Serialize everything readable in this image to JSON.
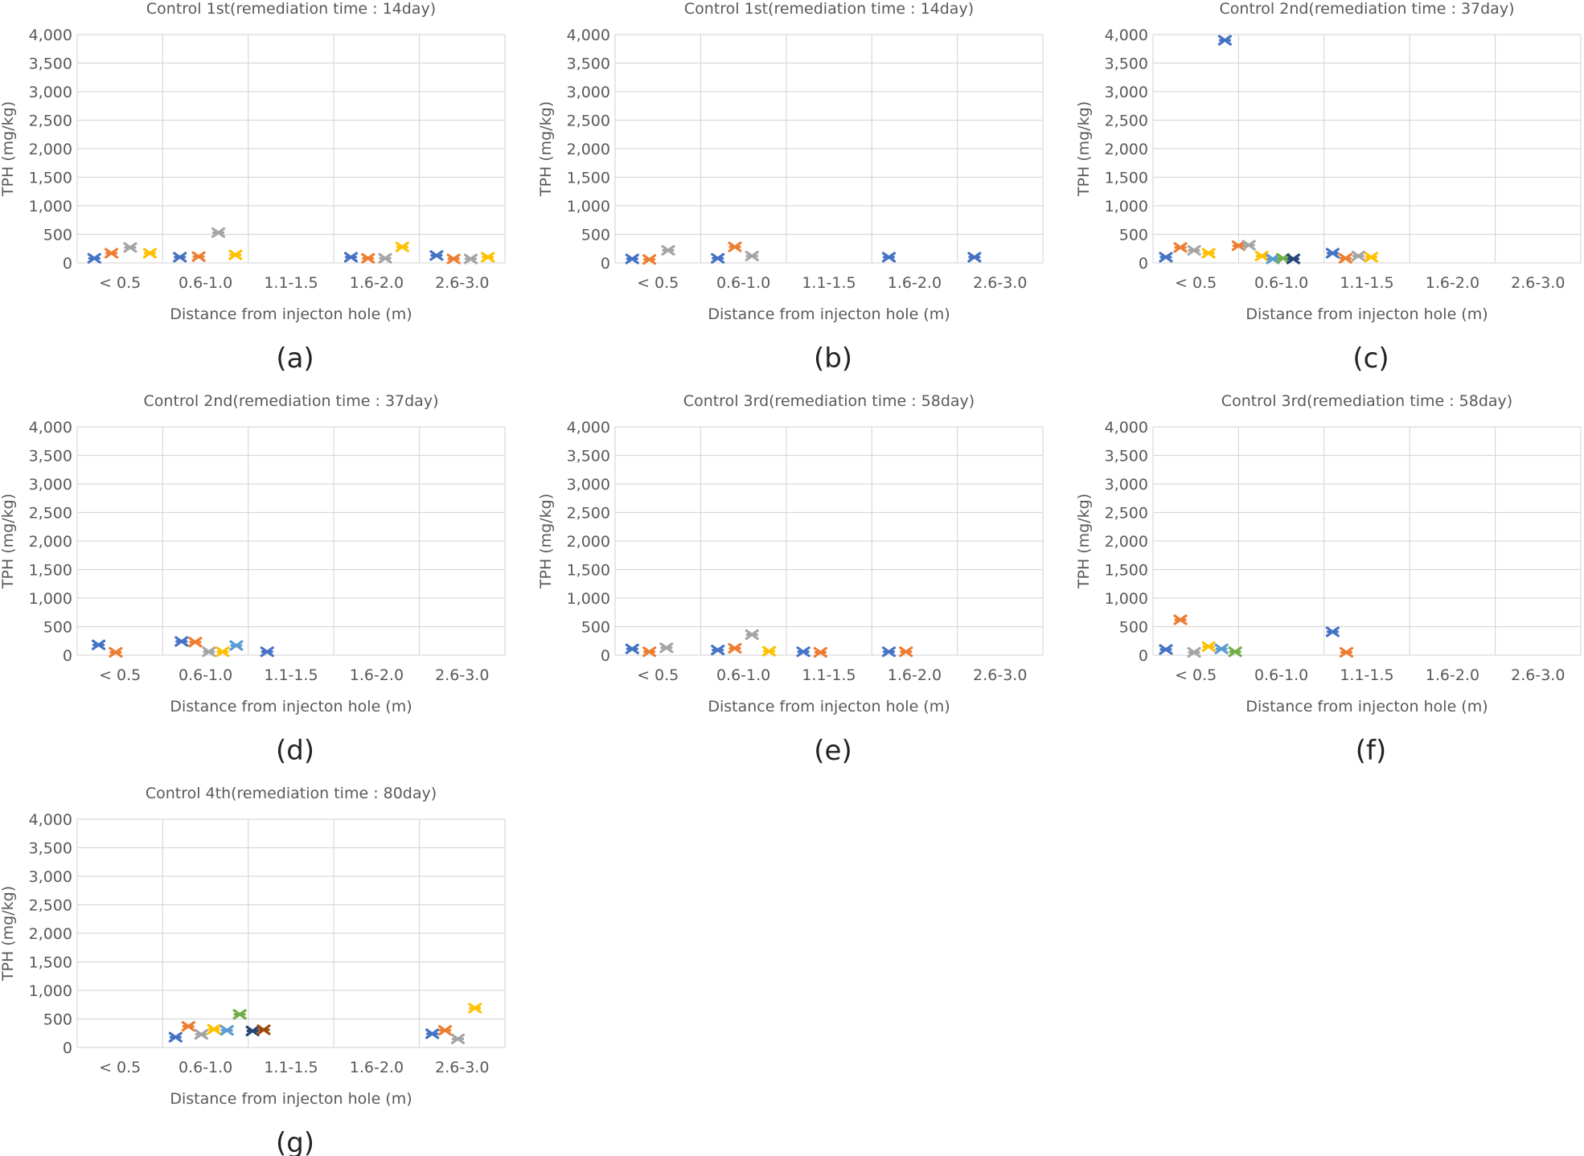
{
  "colors": {
    "blue": "#4472C4",
    "orange": "#ED7D31",
    "gray": "#A5A5A5",
    "yellow": "#FFC000",
    "lightblue": "#5B9BD5",
    "green": "#70AD47",
    "navy": "#264478",
    "darkorange": "#9E480E"
  },
  "chart_data": [
    {
      "type": "scatter",
      "panel": "(a)",
      "title": "Control 1st(remediation time : 14day)",
      "xlabel": "Distance from injecton hole (m)",
      "ylabel": "TPH (mg/kg)",
      "categories": [
        "< 0.5",
        "0.6-1.0",
        "1.1-1.5",
        "1.6-2.0",
        "2.6-3.0"
      ],
      "ylim": [
        0,
        4000
      ],
      "yticks": [
        "0",
        "500",
        "1,000",
        "1,500",
        "2,000",
        "2,500",
        "3,000",
        "3,500",
        "4,000"
      ],
      "grid": true,
      "legend": "none",
      "points": [
        {
          "x": 0.2,
          "y": 80,
          "color": "blue"
        },
        {
          "x": 0.4,
          "y": 170,
          "color": "orange"
        },
        {
          "x": 0.62,
          "y": 270,
          "color": "gray"
        },
        {
          "x": 0.85,
          "y": 170,
          "color": "yellow"
        },
        {
          "x": 1.2,
          "y": 100,
          "color": "blue"
        },
        {
          "x": 1.42,
          "y": 110,
          "color": "orange"
        },
        {
          "x": 1.65,
          "y": 530,
          "color": "gray"
        },
        {
          "x": 1.85,
          "y": 140,
          "color": "yellow"
        },
        {
          "x": 3.2,
          "y": 100,
          "color": "blue"
        },
        {
          "x": 3.4,
          "y": 80,
          "color": "orange"
        },
        {
          "x": 3.6,
          "y": 80,
          "color": "gray"
        },
        {
          "x": 3.8,
          "y": 280,
          "color": "yellow"
        },
        {
          "x": 4.2,
          "y": 130,
          "color": "blue"
        },
        {
          "x": 4.4,
          "y": 70,
          "color": "orange"
        },
        {
          "x": 4.6,
          "y": 70,
          "color": "gray"
        },
        {
          "x": 4.8,
          "y": 100,
          "color": "yellow"
        }
      ]
    },
    {
      "type": "scatter",
      "panel": "(b)",
      "title": "Control 1st(remediation time : 14day)",
      "xlabel": "Distance from injecton hole (m)",
      "ylabel": "TPH (mg/kg)",
      "categories": [
        "< 0.5",
        "0.6-1.0",
        "1.1-1.5",
        "1.6-2.0",
        "2.6-3.0"
      ],
      "ylim": [
        0,
        4000
      ],
      "yticks": [
        "0",
        "500",
        "1,000",
        "1,500",
        "2,000",
        "2,500",
        "3,000",
        "3,500",
        "4,000"
      ],
      "grid": true,
      "legend": "none",
      "points": [
        {
          "x": 0.2,
          "y": 70,
          "color": "blue"
        },
        {
          "x": 0.4,
          "y": 60,
          "color": "orange"
        },
        {
          "x": 0.62,
          "y": 220,
          "color": "gray"
        },
        {
          "x": 1.2,
          "y": 80,
          "color": "blue"
        },
        {
          "x": 1.4,
          "y": 280,
          "color": "orange"
        },
        {
          "x": 1.6,
          "y": 120,
          "color": "gray"
        },
        {
          "x": 3.2,
          "y": 100,
          "color": "blue"
        },
        {
          "x": 4.2,
          "y": 100,
          "color": "blue"
        }
      ]
    },
    {
      "type": "scatter",
      "panel": "(c)",
      "title": "Control 2nd(remediation time : 37day)",
      "xlabel": "Distance from injecton hole (m)",
      "ylabel": "TPH (mg/kg)",
      "categories": [
        "< 0.5",
        "0.6-1.0",
        "1.1-1.5",
        "1.6-2.0",
        "2.6-3.0"
      ],
      "ylim": [
        0,
        4000
      ],
      "yticks": [
        "0",
        "500",
        "1,000",
        "1,500",
        "2,000",
        "2,500",
        "3,000",
        "3,500",
        "4,000"
      ],
      "grid": true,
      "legend": "none",
      "points": [
        {
          "x": 0.15,
          "y": 100,
          "color": "blue"
        },
        {
          "x": 0.32,
          "y": 270,
          "color": "orange"
        },
        {
          "x": 0.48,
          "y": 220,
          "color": "gray"
        },
        {
          "x": 0.65,
          "y": 170,
          "color": "yellow"
        },
        {
          "x": 0.84,
          "y": 3900,
          "color": "blue"
        },
        {
          "x": 1.0,
          "y": 300,
          "color": "orange"
        },
        {
          "x": 1.12,
          "y": 310,
          "color": "gray"
        },
        {
          "x": 1.27,
          "y": 120,
          "color": "yellow"
        },
        {
          "x": 1.4,
          "y": 70,
          "color": "lightblue"
        },
        {
          "x": 1.52,
          "y": 80,
          "color": "green"
        },
        {
          "x": 1.64,
          "y": 70,
          "color": "navy"
        },
        {
          "x": 2.1,
          "y": 170,
          "color": "blue"
        },
        {
          "x": 2.25,
          "y": 80,
          "color": "orange"
        },
        {
          "x": 2.4,
          "y": 120,
          "color": "gray"
        },
        {
          "x": 2.55,
          "y": 100,
          "color": "yellow"
        }
      ]
    },
    {
      "type": "scatter",
      "panel": "(d)",
      "title": "Control 2nd(remediation time : 37day)",
      "xlabel": "Distance from injecton hole (m)",
      "ylabel": "TPH (mg/kg)",
      "categories": [
        "< 0.5",
        "0.6-1.0",
        "1.1-1.5",
        "1.6-2.0",
        "2.6-3.0"
      ],
      "ylim": [
        0,
        4000
      ],
      "yticks": [
        "0",
        "500",
        "1,000",
        "1,500",
        "2,000",
        "2,500",
        "3,000",
        "3,500",
        "4,000"
      ],
      "grid": true,
      "legend": "none",
      "points": [
        {
          "x": 0.25,
          "y": 180,
          "color": "blue"
        },
        {
          "x": 0.45,
          "y": 50,
          "color": "orange"
        },
        {
          "x": 1.22,
          "y": 240,
          "color": "blue"
        },
        {
          "x": 1.38,
          "y": 230,
          "color": "orange"
        },
        {
          "x": 1.54,
          "y": 60,
          "color": "gray"
        },
        {
          "x": 1.7,
          "y": 60,
          "color": "yellow"
        },
        {
          "x": 1.86,
          "y": 170,
          "color": "lightblue"
        },
        {
          "x": 2.22,
          "y": 60,
          "color": "blue"
        }
      ]
    },
    {
      "type": "scatter",
      "panel": "(e)",
      "title": "Control 3rd(remediation time : 58day)",
      "xlabel": "Distance from injecton hole (m)",
      "ylabel": "TPH (mg/kg)",
      "categories": [
        "< 0.5",
        "0.6-1.0",
        "1.1-1.5",
        "1.6-2.0",
        "2.6-3.0"
      ],
      "ylim": [
        0,
        4000
      ],
      "yticks": [
        "0",
        "500",
        "1,000",
        "1,500",
        "2,000",
        "2,500",
        "3,000",
        "3,500",
        "4,000"
      ],
      "grid": true,
      "legend": "none",
      "points": [
        {
          "x": 0.2,
          "y": 110,
          "color": "blue"
        },
        {
          "x": 0.4,
          "y": 60,
          "color": "orange"
        },
        {
          "x": 0.6,
          "y": 130,
          "color": "gray"
        },
        {
          "x": 1.2,
          "y": 90,
          "color": "blue"
        },
        {
          "x": 1.4,
          "y": 120,
          "color": "orange"
        },
        {
          "x": 1.6,
          "y": 360,
          "color": "gray"
        },
        {
          "x": 1.8,
          "y": 70,
          "color": "yellow"
        },
        {
          "x": 2.2,
          "y": 60,
          "color": "blue"
        },
        {
          "x": 2.4,
          "y": 50,
          "color": "orange"
        },
        {
          "x": 3.2,
          "y": 60,
          "color": "blue"
        },
        {
          "x": 3.4,
          "y": 60,
          "color": "orange"
        }
      ]
    },
    {
      "type": "scatter",
      "panel": "(f)",
      "title": "Control 3rd(remediation time : 58day)",
      "xlabel": "Distance from injecton hole (m)",
      "ylabel": "TPH (mg/kg)",
      "categories": [
        "< 0.5",
        "0.6-1.0",
        "1.1-1.5",
        "1.6-2.0",
        "2.6-3.0"
      ],
      "ylim": [
        0,
        4000
      ],
      "yticks": [
        "0",
        "500",
        "1,000",
        "1,500",
        "2,000",
        "2,500",
        "3,000",
        "3,500",
        "4,000"
      ],
      "grid": true,
      "legend": "none",
      "points": [
        {
          "x": 0.15,
          "y": 100,
          "color": "blue"
        },
        {
          "x": 0.32,
          "y": 620,
          "color": "orange"
        },
        {
          "x": 0.48,
          "y": 50,
          "color": "gray"
        },
        {
          "x": 0.65,
          "y": 150,
          "color": "yellow"
        },
        {
          "x": 0.8,
          "y": 110,
          "color": "lightblue"
        },
        {
          "x": 0.96,
          "y": 60,
          "color": "green"
        },
        {
          "x": 2.1,
          "y": 410,
          "color": "blue"
        },
        {
          "x": 2.26,
          "y": 50,
          "color": "orange"
        }
      ]
    },
    {
      "type": "scatter",
      "panel": "(g)",
      "title": "Control 4th(remediation time : 80day)",
      "xlabel": "Distance from injecton hole (m)",
      "ylabel": "TPH (mg/kg)",
      "categories": [
        "< 0.5",
        "0.6-1.0",
        "1.1-1.5",
        "1.6-2.0",
        "2.6-3.0"
      ],
      "ylim": [
        0,
        4000
      ],
      "yticks": [
        "0",
        "500",
        "1,000",
        "1,500",
        "2,000",
        "2,500",
        "3,000",
        "3,500",
        "4,000"
      ],
      "grid": true,
      "legend": "none",
      "points": [
        {
          "x": 1.15,
          "y": 180,
          "color": "blue"
        },
        {
          "x": 1.3,
          "y": 370,
          "color": "orange"
        },
        {
          "x": 1.45,
          "y": 230,
          "color": "gray"
        },
        {
          "x": 1.6,
          "y": 320,
          "color": "yellow"
        },
        {
          "x": 1.75,
          "y": 300,
          "color": "lightblue"
        },
        {
          "x": 1.9,
          "y": 580,
          "color": "green"
        },
        {
          "x": 2.05,
          "y": 290,
          "color": "navy"
        },
        {
          "x": 2.18,
          "y": 310,
          "color": "darkorange"
        },
        {
          "x": 4.15,
          "y": 240,
          "color": "blue"
        },
        {
          "x": 4.3,
          "y": 300,
          "color": "orange"
        },
        {
          "x": 4.45,
          "y": 150,
          "color": "gray"
        },
        {
          "x": 4.65,
          "y": 690,
          "color": "yellow"
        }
      ]
    }
  ]
}
